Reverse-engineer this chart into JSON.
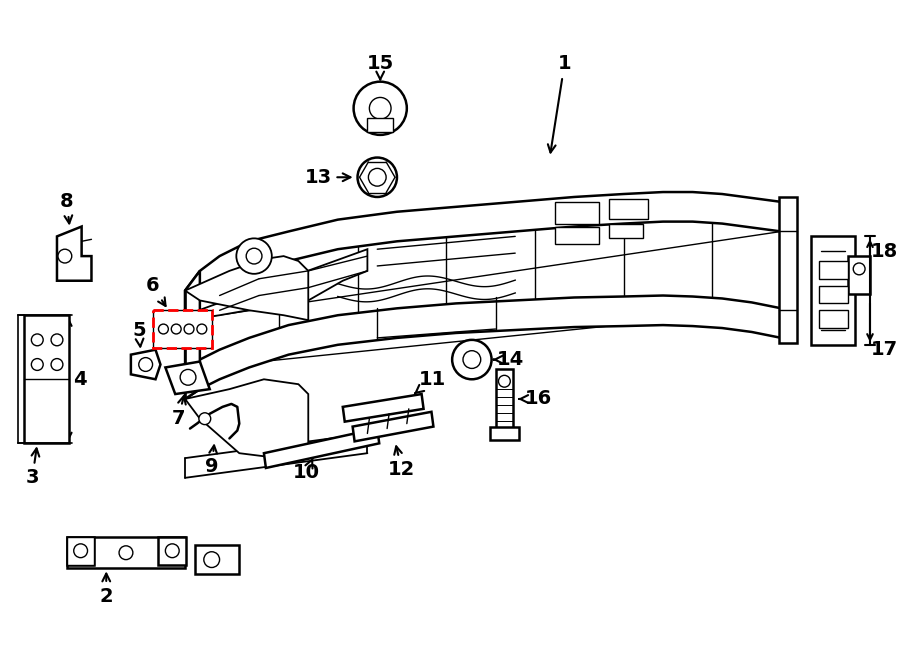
{
  "bg_color": "#ffffff",
  "line_color": "#000000",
  "red_dash_color": "#ff0000",
  "figsize": [
    9.0,
    6.61
  ],
  "dpi": 100
}
